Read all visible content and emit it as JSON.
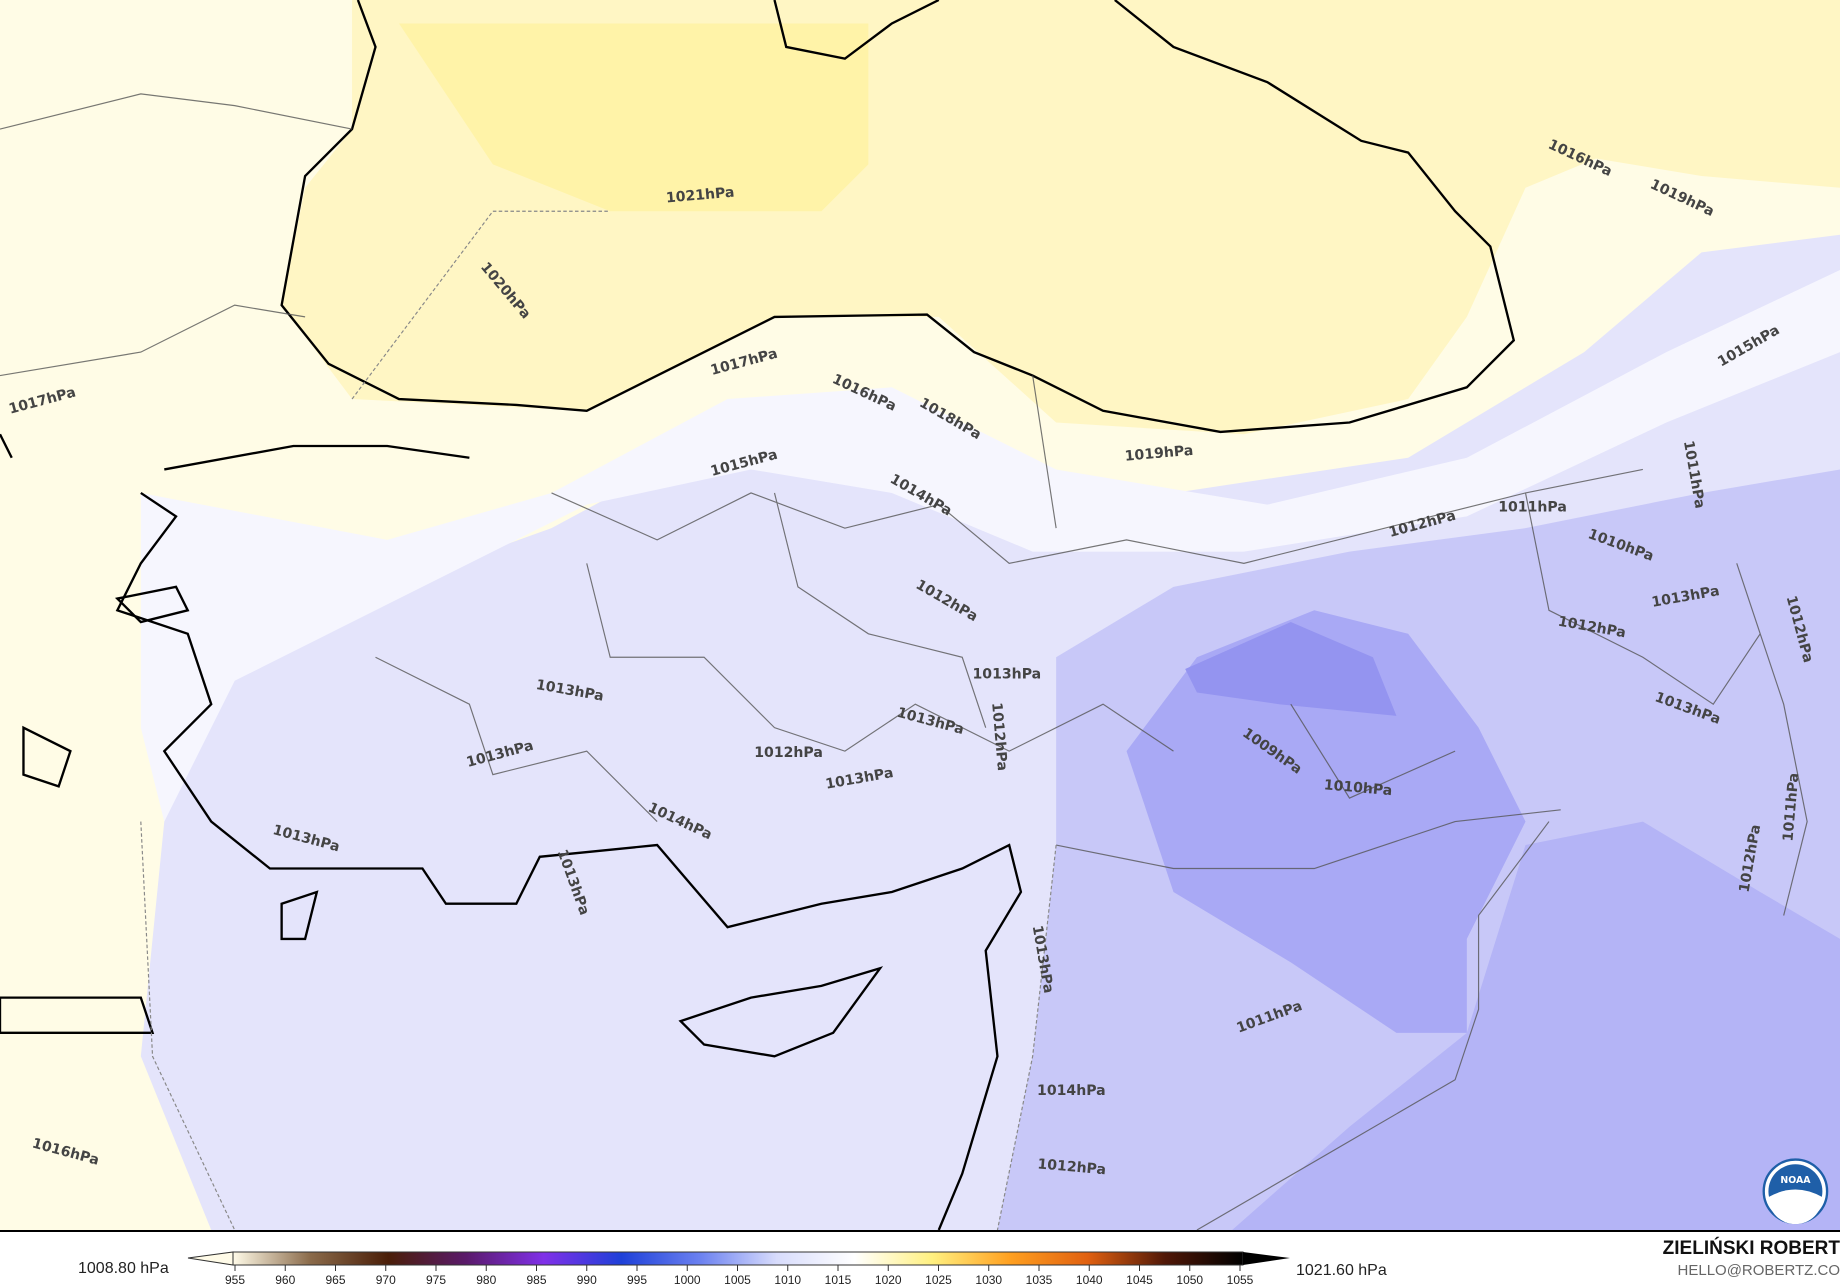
{
  "map": {
    "field": "mean sea level pressure",
    "colors": {
      "high": "#fff5b0",
      "neutral": "#ffffff",
      "low": "#a9a9f5",
      "lowest": "#8f8ff0",
      "coast": "#000000",
      "border": "#555555"
    },
    "contour_labels": [
      "1021hPa",
      "1020hPa",
      "1017hPa",
      "1017hPa",
      "1016hPa",
      "1018hPa",
      "1015hPa",
      "1014hPa",
      "1019hPa",
      "1016hPa",
      "1019hPa",
      "1015hPa",
      "1012hPa",
      "1011hPa",
      "1010hPa",
      "1011hPa",
      "1013hPa",
      "1012hPa",
      "1012hPa",
      "1013hPa",
      "1011hPa",
      "1012hPa",
      "1012hPa",
      "1013hPa",
      "1012hPa",
      "1013hPa",
      "1013hPa",
      "1013hPa",
      "1012hPa",
      "1013hPa",
      "1014hPa",
      "1013hPa",
      "1013hPa",
      "1009hPa",
      "1010hPa",
      "1013hPa",
      "1011hPa",
      "1014hPa",
      "1012hPa",
      "1016hPa"
    ],
    "logo": "NOAA"
  },
  "legend": {
    "min_label": "1008.80 hPa",
    "max_label": "1021.60 hPa",
    "ticks": [
      "955",
      "960",
      "965",
      "970",
      "975",
      "980",
      "985",
      "990",
      "995",
      "1000",
      "1005",
      "1010",
      "1015",
      "1020",
      "1025",
      "1030",
      "1035",
      "1040",
      "1045",
      "1050",
      "1055"
    ],
    "stops": [
      "#fffbe8",
      "#8a6a4a",
      "#4a1e08",
      "#5a1a6a",
      "#8030e8",
      "#1e40d8",
      "#6a80f0",
      "#d8dcfc",
      "#ffffff",
      "#fff080",
      "#ffa020",
      "#e06010",
      "#501808",
      "#000000"
    ]
  },
  "author": {
    "name": "ZIELIŃSKI ROBERT",
    "email": "HELLO@ROBERTZ.CO"
  }
}
